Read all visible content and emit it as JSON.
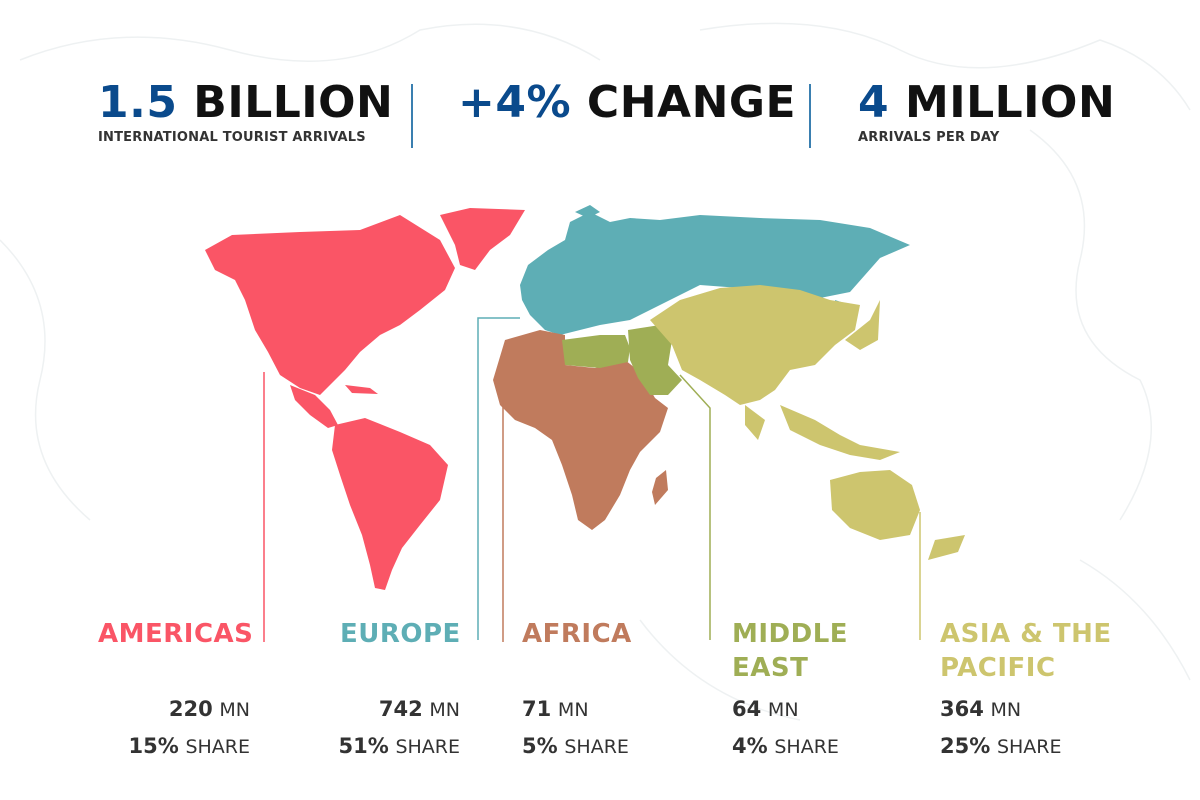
{
  "headline": {
    "arrivals": {
      "number": "1.5",
      "unit": "BILLION",
      "label": "INTERNATIONAL TOURIST ARRIVALS"
    },
    "change": {
      "number": "+4%",
      "unit": "CHANGE"
    },
    "per_day": {
      "number": "4",
      "unit": "MILLION",
      "label": "ARRIVALS PER DAY"
    }
  },
  "regions": [
    {
      "name": "AMERICAS",
      "arrivals": "220",
      "arrivals_unit": "MN",
      "share": "15%",
      "share_unit": "SHARE",
      "color": "#fa5566"
    },
    {
      "name": "EUROPE",
      "arrivals": "742",
      "arrivals_unit": "MN",
      "share": "51%",
      "share_unit": "SHARE",
      "color": "#5eaeb5"
    },
    {
      "name": "AFRICA",
      "arrivals": "71",
      "arrivals_unit": "MN",
      "share": "5%",
      "share_unit": "SHARE",
      "color": "#c07b5d"
    },
    {
      "name_line1": "MIDDLE",
      "name_line2": "EAST",
      "arrivals": "64",
      "arrivals_unit": "MN",
      "share": "4%",
      "share_unit": "SHARE",
      "color": "#9fae55"
    },
    {
      "name_line1": "ASIA & THE",
      "name_line2": "PACIFIC",
      "arrivals": "364",
      "arrivals_unit": "MN",
      "share": "25%",
      "share_unit": "SHARE",
      "color": "#cdc56e"
    }
  ],
  "colors": {
    "accent_blue": "#0a4a8c",
    "divider": "#3a7fb0",
    "text_dark": "#111111"
  }
}
